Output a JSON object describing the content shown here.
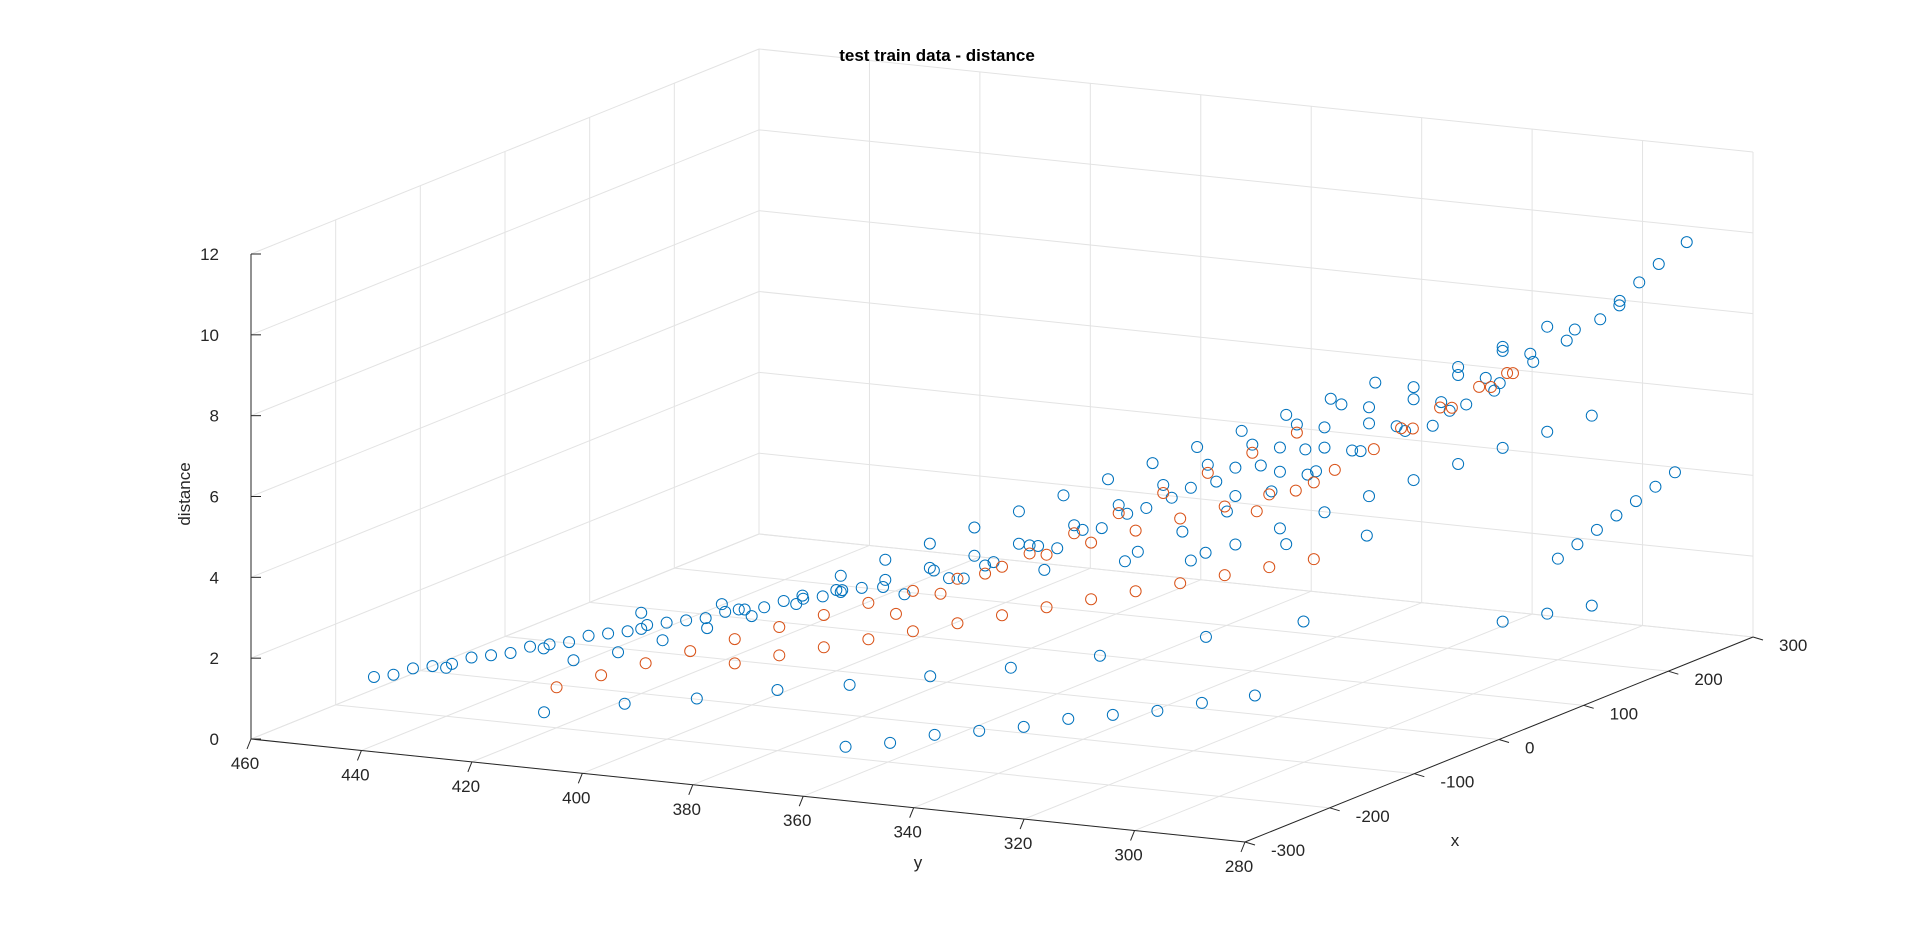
{
  "chart_data": {
    "type": "scatter",
    "title": "test train data - distance",
    "xlabel": "x",
    "ylabel": "y",
    "zlabel": "distance",
    "xlim": [
      -300,
      300
    ],
    "ylim": [
      280,
      460
    ],
    "zlim": [
      0,
      12
    ],
    "x_ticks": [
      "-300",
      "-200",
      "-100",
      "0",
      "100",
      "200",
      "300"
    ],
    "y_ticks": [
      "280",
      "300",
      "320",
      "340",
      "360",
      "380",
      "400",
      "420",
      "440",
      "460"
    ],
    "z_ticks": [
      "0",
      "2",
      "4",
      "6",
      "8",
      "10",
      "12"
    ],
    "grid": true,
    "marker": "circle-open",
    "colors": {
      "train": "#0072BD",
      "test": "#D95319",
      "axis": "#262626",
      "grid": "#e3e3e3"
    },
    "series": [
      {
        "color": "#0072BD",
        "x": [
          -220,
          -210,
          -200,
          -190,
          -180,
          -170,
          -160,
          -150,
          -140,
          -130,
          -120,
          -110,
          -100,
          -90,
          -80,
          -70,
          -60,
          -50,
          -40,
          -30,
          -20,
          -10,
          0,
          10,
          20,
          30,
          -180,
          -160,
          -140,
          -120,
          -100,
          -80,
          -60,
          -40,
          -20,
          0,
          20,
          -200,
          -150,
          -100,
          -50,
          0,
          50,
          -60,
          -40,
          -20,
          0,
          20,
          40,
          60,
          80,
          100,
          120,
          140,
          160,
          180,
          -50,
          -30,
          -10,
          10,
          30,
          50,
          70,
          90,
          110,
          130,
          -20,
          0,
          20,
          40,
          60,
          80,
          100,
          120,
          140,
          0,
          20,
          40,
          60,
          80,
          100,
          120,
          140,
          160,
          180,
          200,
          30,
          50,
          70,
          90,
          110,
          130,
          150,
          170,
          190,
          80,
          100,
          120,
          140,
          160,
          180,
          200,
          220,
          100,
          120,
          140,
          160,
          180,
          200,
          220,
          240,
          60,
          80,
          100,
          120,
          140,
          160,
          180,
          200,
          220,
          240,
          150,
          170,
          190,
          210,
          230,
          250,
          260,
          270,
          280,
          300,
          -280,
          -250,
          -230,
          -200,
          -180,
          -150,
          -120,
          -80,
          -20,
          30,
          -100,
          -70,
          -40,
          -10,
          20,
          50,
          80,
          110,
          140,
          170,
          -250,
          -230,
          -210,
          -190,
          -170,
          -150,
          -130,
          -110,
          -90,
          -60,
          200,
          210,
          220,
          230,
          240,
          250,
          260,
          200,
          220,
          240
        ],
        "y": [
          450,
          448,
          446,
          444,
          442,
          440,
          438,
          436,
          434,
          432,
          430,
          428,
          426,
          424,
          422,
          420,
          418,
          416,
          414,
          412,
          410,
          408,
          406,
          404,
          402,
          400,
          420,
          415,
          410,
          405,
          400,
          395,
          390,
          385,
          380,
          375,
          370,
          440,
          430,
          420,
          410,
          400,
          390,
          390,
          385,
          380,
          375,
          370,
          365,
          360,
          355,
          350,
          345,
          340,
          335,
          330,
          380,
          375,
          370,
          365,
          360,
          355,
          350,
          345,
          340,
          335,
          370,
          365,
          360,
          355,
          350,
          345,
          340,
          335,
          330,
          360,
          355,
          350,
          345,
          340,
          335,
          330,
          325,
          320,
          315,
          310,
          350,
          345,
          340,
          335,
          330,
          325,
          320,
          315,
          310,
          340,
          335,
          330,
          325,
          320,
          315,
          310,
          305,
          330,
          325,
          320,
          315,
          310,
          305,
          300,
          295,
          345,
          340,
          335,
          330,
          325,
          320,
          315,
          310,
          305,
          300,
          315,
          312,
          309,
          306,
          303,
          300,
          298,
          296,
          294,
          292,
          410,
          400,
          390,
          380,
          370,
          360,
          350,
          340,
          330,
          320,
          420,
          410,
          400,
          390,
          380,
          370,
          360,
          350,
          340,
          330,
          360,
          355,
          350,
          345,
          340,
          335,
          330,
          325,
          320,
          315,
          300,
          298,
          296,
          294,
          292,
          290,
          288,
          310,
          305,
          300
        ],
        "z": [
          1.0,
          1.0,
          1.1,
          1.1,
          1.1,
          1.2,
          1.2,
          1.2,
          1.3,
          1.3,
          1.3,
          1.4,
          1.4,
          1.4,
          1.5,
          1.5,
          1.5,
          1.5,
          1.6,
          1.6,
          1.6,
          1.7,
          1.7,
          1.7,
          1.8,
          1.8,
          1.5,
          1.6,
          1.8,
          2.0,
          2.2,
          2.4,
          2.6,
          2.8,
          3.0,
          3.2,
          3.4,
          1.2,
          1.4,
          1.6,
          1.8,
          2.0,
          2.2,
          3.0,
          3.3,
          3.6,
          3.9,
          4.2,
          4.5,
          4.8,
          5.1,
          5.4,
          5.7,
          6.0,
          6.3,
          6.6,
          2.6,
          2.9,
          3.2,
          3.5,
          3.8,
          4.1,
          4.4,
          4.7,
          5.0,
          5.3,
          3.2,
          3.6,
          4.0,
          4.4,
          4.8,
          5.2,
          5.6,
          6.0,
          6.4,
          3.6,
          4.0,
          4.4,
          4.8,
          5.2,
          5.6,
          6.0,
          6.4,
          6.8,
          7.2,
          7.6,
          3.4,
          3.8,
          4.2,
          4.6,
          5.0,
          5.4,
          5.8,
          6.2,
          6.6,
          4.5,
          5.0,
          5.5,
          6.0,
          6.5,
          7.0,
          7.5,
          8.0,
          5.0,
          5.5,
          6.0,
          6.5,
          7.0,
          7.5,
          8.0,
          8.5,
          3.0,
          3.3,
          3.6,
          3.9,
          4.2,
          4.5,
          4.8,
          5.1,
          5.4,
          5.7,
          6.0,
          6.4,
          6.8,
          7.2,
          7.6,
          8.0,
          8.4,
          8.8,
          9.2,
          9.6,
          1.2,
          1.3,
          1.4,
          1.5,
          1.6,
          1.7,
          1.8,
          1.9,
          2.0,
          2.1,
          2.0,
          2.1,
          2.2,
          2.3,
          2.4,
          2.5,
          2.6,
          2.7,
          2.8,
          2.9,
          0.8,
          0.8,
          0.9,
          0.9,
          0.9,
          1.0,
          1.0,
          1.0,
          1.1,
          1.1,
          2.5,
          2.8,
          3.1,
          3.4,
          3.7,
          4.0,
          4.3,
          0.8,
          0.9,
          1.0
        ]
      },
      {
        "color": "#D95319",
        "x": [
          -200,
          -180,
          -160,
          -140,
          -120,
          -100,
          -80,
          -60,
          -40,
          -20,
          0,
          20,
          40,
          60,
          80,
          100,
          120,
          140,
          -120,
          -100,
          -80,
          -60,
          -40,
          -20,
          0,
          20,
          40,
          60,
          80,
          100,
          120,
          140,
          40,
          60,
          80,
          100,
          120,
          140,
          160,
          160,
          140,
          120,
          100,
          80,
          -60,
          -40,
          -20,
          0,
          20,
          40,
          60,
          80,
          100,
          120
        ],
        "y": [
          420,
          415,
          410,
          405,
          400,
          395,
          390,
          385,
          380,
          375,
          370,
          365,
          360,
          355,
          350,
          345,
          340,
          335,
          400,
          395,
          390,
          385,
          380,
          375,
          370,
          365,
          360,
          355,
          350,
          345,
          340,
          335,
          330,
          326,
          322,
          318,
          314,
          310,
          306,
          302,
          300,
          302,
          306,
          310,
          380,
          375,
          370,
          365,
          360,
          355,
          350,
          345,
          340,
          335
        ],
        "z": [
          1.0,
          1.2,
          1.4,
          1.6,
          1.8,
          2.0,
          2.2,
          2.4,
          2.6,
          2.8,
          3.0,
          3.2,
          3.4,
          3.6,
          3.8,
          4.0,
          4.2,
          4.4,
          1.2,
          1.3,
          1.4,
          1.5,
          1.6,
          1.7,
          1.8,
          1.9,
          2.0,
          2.1,
          2.2,
          2.3,
          2.4,
          2.5,
          4.6,
          5.0,
          5.4,
          5.8,
          6.2,
          6.6,
          7.0,
          7.4,
          7.6,
          7.4,
          7.0,
          6.6,
          2.2,
          2.6,
          3.0,
          3.4,
          3.8,
          4.2,
          4.6,
          5.0,
          5.4,
          5.8
        ]
      }
    ]
  }
}
